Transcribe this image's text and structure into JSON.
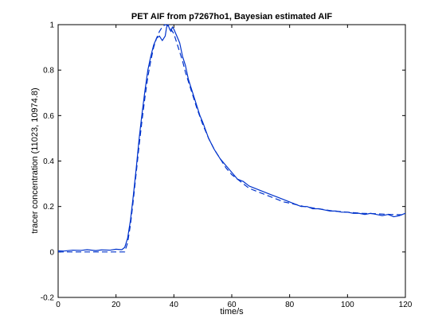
{
  "chart_data": {
    "type": "line",
    "title": "PET AIF from p7267ho1, Bayesian estimated AIF",
    "xlabel": "time/s",
    "ylabel": "tracer concentration (11023, 10974.8)",
    "xlim": [
      0,
      120
    ],
    "ylim": [
      -0.2,
      1
    ],
    "xticks": [
      "0",
      "20",
      "40",
      "60",
      "80",
      "100",
      "120"
    ],
    "yticks": [
      "-0.2",
      "0",
      "0.2",
      "0.4",
      "0.6",
      "0.8",
      "1"
    ],
    "grid": false,
    "legend": "none",
    "series": [
      {
        "style": "solid",
        "color": "#0033cc",
        "x": [
          0,
          2,
          5,
          8,
          10,
          13,
          15,
          18,
          20,
          22,
          23,
          24,
          25,
          26,
          27,
          28,
          29,
          30,
          31,
          32,
          33,
          34,
          35,
          36,
          37,
          37.5,
          38,
          38.5,
          39,
          39.5,
          40,
          41,
          42,
          43,
          44,
          45,
          46,
          47,
          48,
          49,
          50,
          52,
          54,
          56,
          58,
          60,
          62,
          64,
          66,
          68,
          70,
          72,
          74,
          76,
          78,
          80,
          82,
          84,
          86,
          88,
          90,
          92,
          94,
          96,
          98,
          100,
          102,
          104,
          106,
          108,
          110,
          112,
          114,
          116,
          118,
          120
        ],
        "y": [
          0.005,
          0.004,
          0.008,
          0.007,
          0.01,
          0.006,
          0.009,
          0.008,
          0.012,
          0.01,
          0.02,
          0.06,
          0.14,
          0.25,
          0.37,
          0.5,
          0.61,
          0.71,
          0.8,
          0.86,
          0.91,
          0.94,
          0.95,
          0.93,
          0.95,
          0.99,
          1.0,
          0.98,
          0.97,
          0.99,
          0.98,
          0.95,
          0.92,
          0.86,
          0.82,
          0.76,
          0.72,
          0.68,
          0.64,
          0.6,
          0.57,
          0.5,
          0.45,
          0.41,
          0.38,
          0.35,
          0.32,
          0.31,
          0.29,
          0.28,
          0.27,
          0.26,
          0.25,
          0.24,
          0.23,
          0.22,
          0.21,
          0.2,
          0.2,
          0.19,
          0.19,
          0.185,
          0.18,
          0.18,
          0.175,
          0.175,
          0.17,
          0.17,
          0.165,
          0.17,
          0.165,
          0.16,
          0.165,
          0.155,
          0.16,
          0.17
        ]
      },
      {
        "style": "dashed",
        "color": "#0033cc",
        "x": [
          0,
          5,
          10,
          15,
          20,
          23,
          24,
          25,
          26,
          27,
          28,
          29,
          30,
          31,
          32,
          33,
          34,
          35,
          36,
          37,
          38,
          39,
          40,
          41,
          42,
          43,
          44,
          45,
          46,
          47,
          48,
          50,
          52,
          54,
          56,
          58,
          60,
          62,
          64,
          66,
          68,
          70,
          72,
          74,
          76,
          78,
          80,
          85,
          90,
          95,
          100,
          105,
          110,
          115,
          120
        ],
        "y": [
          0.0,
          0.0,
          0.0,
          0.0,
          0.0,
          0.0,
          0.04,
          0.12,
          0.23,
          0.35,
          0.47,
          0.58,
          0.68,
          0.77,
          0.84,
          0.9,
          0.94,
          0.97,
          0.99,
          1.0,
          0.995,
          0.98,
          0.96,
          0.92,
          0.88,
          0.84,
          0.79,
          0.75,
          0.71,
          0.67,
          0.63,
          0.56,
          0.5,
          0.45,
          0.41,
          0.37,
          0.34,
          0.32,
          0.3,
          0.28,
          0.27,
          0.26,
          0.25,
          0.24,
          0.23,
          0.22,
          0.215,
          0.2,
          0.19,
          0.18,
          0.175,
          0.17,
          0.168,
          0.165,
          0.163
        ]
      }
    ]
  }
}
